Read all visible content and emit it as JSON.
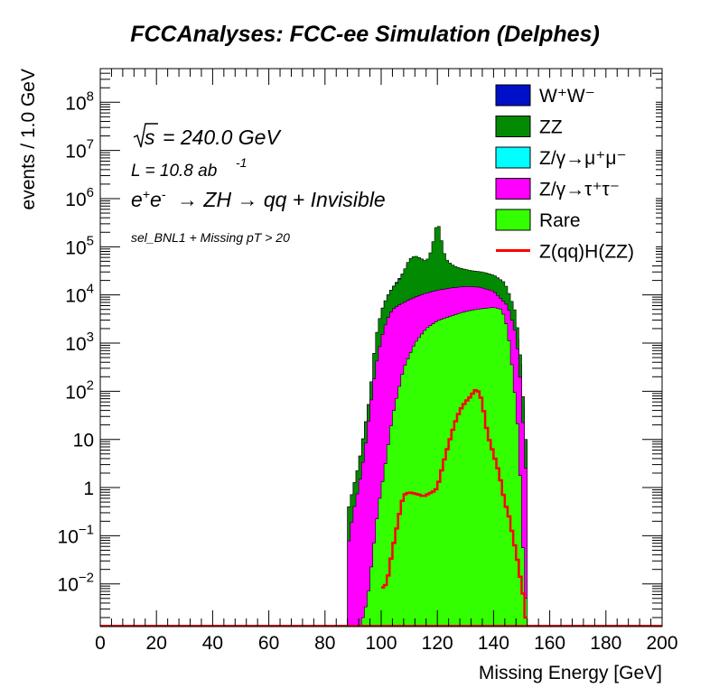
{
  "chart_data": {
    "type": "area",
    "title": "FCCAnalyses: FCC-ee Simulation (Delphes)",
    "xlabel": "Missing Energy [GeV]",
    "ylabel": "events / 1.0 GeV",
    "xlim": [
      0,
      200
    ],
    "ylim": [
      0.0013,
      500000000
    ],
    "yscale": "log",
    "grid": false,
    "legend_position": "top-right",
    "x_tick_labels": [
      "0",
      "20",
      "40",
      "60",
      "80",
      "100",
      "120",
      "140",
      "160",
      "180",
      "200"
    ],
    "y_tick_labels": [
      "10^-2",
      "10^-1",
      "1",
      "10",
      "10^2",
      "10^3",
      "10^4",
      "10^5",
      "10^6",
      "10^7",
      "10^8"
    ],
    "annotations": {
      "sqrt_s": "= 240.0 GeV",
      "lumi": "L = 10.8 ab",
      "lumi_exp": "-1",
      "process": "→ ZH → qq + Invisible",
      "selection": "sel_BNL1 + Missing pT > 20"
    },
    "legend": [
      {
        "label": "W⁺W⁻",
        "color": "#0010c8",
        "style": "fill"
      },
      {
        "label": "ZZ",
        "color": "#038a03",
        "style": "fill"
      },
      {
        "label": "Z/γ→μ⁺μ⁻",
        "color": "#00ffff",
        "style": "fill"
      },
      {
        "label": "Z/γ→τ⁺τ⁻",
        "color": "#ff00ff",
        "style": "fill"
      },
      {
        "label": "Rare",
        "color": "#33ff00",
        "style": "fill"
      },
      {
        "label": "Z(qq)H(ZZ)",
        "color": "#ff0000",
        "style": "line"
      }
    ],
    "stack_layers": [
      {
        "name": "Rare",
        "color": "#33ff00",
        "x": [
          88,
          92,
          95,
          97,
          99,
          101,
          104,
          108,
          112,
          116,
          120,
          124,
          128,
          132,
          136,
          140,
          143,
          145,
          147,
          149,
          151,
          152
        ],
        "y": [
          0,
          0,
          0.004,
          0.04,
          0.4,
          2,
          30,
          300,
          1000,
          2000,
          2900,
          3500,
          4200,
          4800,
          5200,
          5500,
          5000,
          2000,
          200,
          10,
          0.01,
          0
        ]
      },
      {
        "name": "Z/γ→τ⁺τ⁻",
        "color": "#ff00ff",
        "x": [
          88,
          90,
          92,
          94,
          96,
          98,
          100,
          102,
          104,
          106,
          110,
          115,
          120,
          125,
          130,
          135,
          140,
          145,
          148,
          150,
          151,
          152
        ],
        "y": [
          0.05,
          0.3,
          1,
          5,
          40,
          300,
          1200,
          3000,
          5000,
          6000,
          8000,
          10500,
          12500,
          14000,
          15000,
          14500,
          12000,
          6000,
          1500,
          100,
          5,
          0
        ]
      },
      {
        "name": "ZZ",
        "color": "#038a03",
        "x": [
          88,
          92,
          96,
          98,
          100,
          102,
          104,
          106,
          108,
          110,
          112,
          114,
          116,
          117,
          118,
          119,
          120,
          121,
          122,
          123,
          124,
          126,
          128,
          132,
          136,
          140,
          144,
          146,
          148,
          150,
          151,
          152
        ],
        "y": [
          0.3,
          3,
          80,
          1200,
          4500,
          9000,
          14000,
          19000,
          30000,
          55000,
          65000,
          58000,
          50000,
          62000,
          90000,
          180000,
          350000,
          200000,
          90000,
          58000,
          48000,
          40000,
          36000,
          32000,
          30000,
          26000,
          18000,
          9000,
          4000,
          300,
          20,
          0
        ]
      },
      {
        "name": "W⁺W⁻",
        "color": "#0010c8",
        "x": [
          88,
          92,
          96,
          98,
          100,
          102,
          104,
          106,
          108,
          110,
          112,
          114,
          116,
          118,
          120,
          122,
          124,
          126,
          128,
          132,
          136,
          140,
          144,
          146,
          148,
          150,
          151,
          152
        ],
        "y": [
          0.3,
          3,
          80,
          1200,
          4500,
          9000,
          14000,
          20000,
          30000,
          47000,
          45000,
          35000,
          27000,
          22000,
          19000,
          17000,
          16500,
          16000,
          15500,
          15000,
          14800,
          13500,
          10000,
          5500,
          2200,
          200,
          12,
          0
        ]
      }
    ],
    "signal_series": {
      "name": "Z(qq)H(ZZ)",
      "color": "#ff0000",
      "x": [
        100,
        102,
        104,
        105,
        106,
        107,
        108,
        110,
        112,
        114,
        115,
        116,
        117,
        118,
        119,
        120,
        122,
        124,
        126,
        128,
        130,
        132,
        133,
        134,
        135,
        136,
        137,
        138,
        140,
        142,
        144,
        146,
        147,
        148,
        149,
        150,
        151,
        152
      ],
      "y": [
        0.008,
        0.01,
        0.05,
        0.1,
        0.2,
        0.4,
        0.7,
        0.8,
        0.75,
        0.7,
        0.65,
        0.7,
        0.75,
        0.8,
        0.85,
        1.0,
        3,
        8,
        20,
        40,
        60,
        80,
        100,
        110,
        90,
        60,
        25,
        12,
        5,
        2,
        0.5,
        0.2,
        0.08,
        0.05,
        0.02,
        0.01,
        0.004,
        0.001
      ]
    }
  }
}
